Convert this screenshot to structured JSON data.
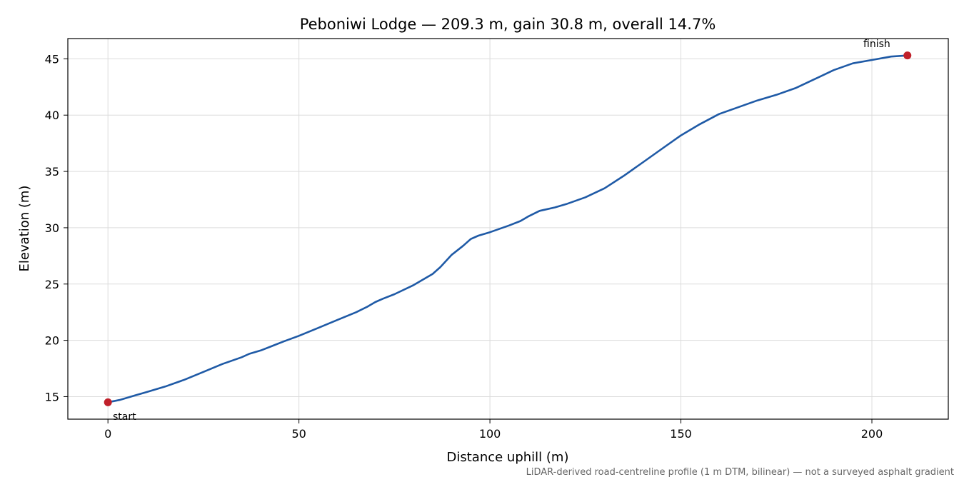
{
  "chart_data": {
    "type": "line",
    "title": "Peboniwi Lodge — 209.3 m, gain 30.8 m, overall 14.7%",
    "xlabel": "Distance uphill (m)",
    "ylabel": "Elevation (m)",
    "xlim": [
      -10.5,
      220
    ],
    "ylim": [
      13,
      46.8
    ],
    "xticks": [
      0,
      50,
      100,
      150,
      200
    ],
    "yticks": [
      15,
      20,
      25,
      30,
      35,
      40,
      45
    ],
    "grid": true,
    "line_color": "#1f5aa6",
    "marker_color": "#c0202a",
    "series": [
      {
        "x": [
          0,
          3,
          7,
          10,
          15,
          20,
          25,
          30,
          35,
          37,
          40,
          43,
          46,
          50,
          55,
          60,
          65,
          68,
          70,
          72,
          75,
          80,
          85,
          87,
          90,
          93,
          95,
          97,
          100,
          105,
          108,
          110,
          113,
          117,
          120,
          125,
          130,
          135,
          140,
          145,
          150,
          155,
          160,
          165,
          170,
          175,
          180,
          185,
          190,
          195,
          200,
          205,
          209.3
        ],
        "values": [
          14.5,
          14.7,
          15.1,
          15.4,
          15.9,
          16.5,
          17.2,
          17.9,
          18.5,
          18.8,
          19.1,
          19.5,
          19.9,
          20.4,
          21.1,
          21.8,
          22.5,
          23.0,
          23.4,
          23.7,
          24.1,
          24.9,
          25.9,
          26.5,
          27.6,
          28.4,
          29.0,
          29.3,
          29.6,
          30.2,
          30.6,
          31.0,
          31.5,
          31.8,
          32.1,
          32.7,
          33.5,
          34.6,
          35.8,
          37.0,
          38.2,
          39.2,
          40.1,
          40.7,
          41.3,
          41.8,
          42.4,
          43.2,
          44.0,
          44.6,
          44.9,
          45.2,
          45.3
        ]
      }
    ],
    "annotations": [
      {
        "label": "start",
        "x": 0,
        "y": 14.5
      },
      {
        "label": "finish",
        "x": 209.3,
        "y": 45.3
      }
    ],
    "footnote": "LiDAR-derived road-centreline profile (1 m DTM, bilinear) — not a surveyed asphalt gradient"
  }
}
